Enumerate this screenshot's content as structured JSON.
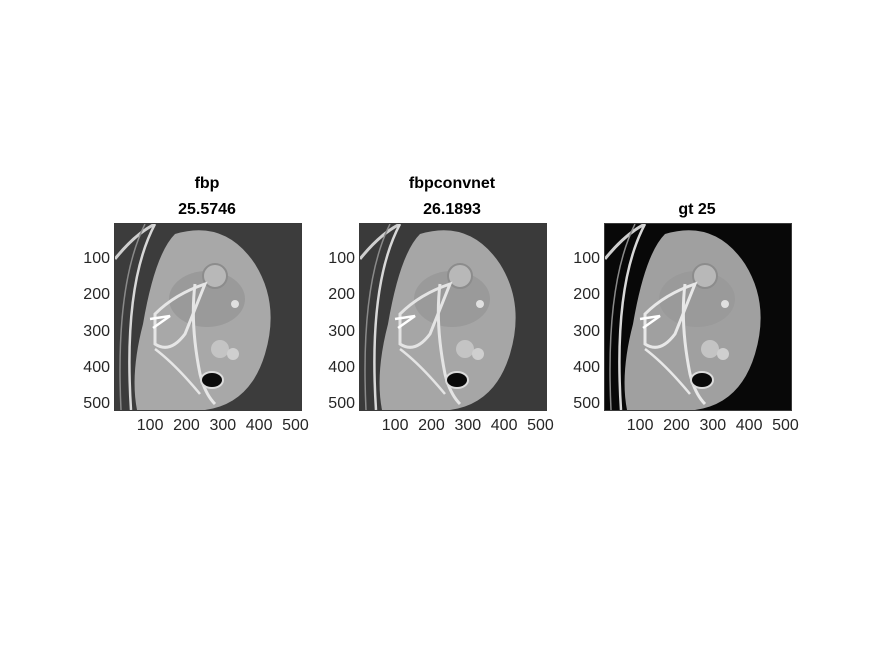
{
  "figure": {
    "panels": [
      {
        "id": "fbp",
        "title_line1": "fbp",
        "title_line2": "25.5746",
        "background": "#3c3c3c",
        "body_fill": "#a8a8a8",
        "bone_fill": "#e6e6e6"
      },
      {
        "id": "fbpconvnet",
        "title_line1": "fbpconvnet",
        "title_line2": "26.1893",
        "background": "#3a3a3a",
        "body_fill": "#a6a6a6",
        "bone_fill": "#e4e4e4"
      },
      {
        "id": "gt",
        "title_line1": "",
        "title_line2": "gt 25",
        "background": "#080808",
        "body_fill": "#a0a0a0",
        "bone_fill": "#e8e8e8"
      }
    ],
    "yticks": [
      "100",
      "200",
      "300",
      "400",
      "500"
    ],
    "xticks": [
      "100",
      "200",
      "300",
      "400",
      "500"
    ]
  }
}
